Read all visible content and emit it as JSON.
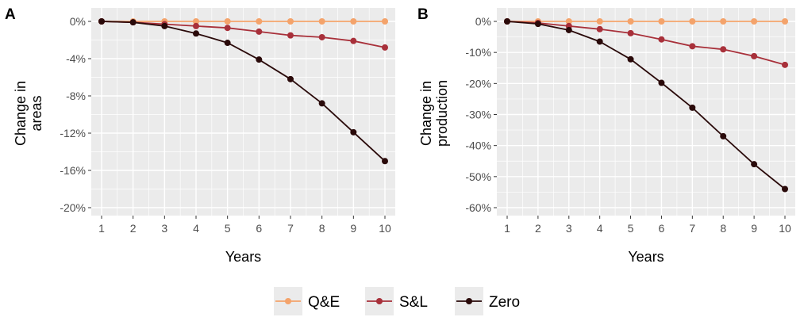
{
  "colors": {
    "Q&E": "#f4a36b",
    "S&L": "#a8303a",
    "Zero": "#2a0a0a"
  },
  "legend": {
    "items": [
      {
        "name": "Q&E",
        "label": "Q&E"
      },
      {
        "name": "S&L",
        "label": "S&L"
      },
      {
        "name": "Zero",
        "label": "Zero"
      }
    ]
  },
  "chart_data": [
    {
      "panel_label": "A",
      "type": "line",
      "xlabel": "Years",
      "ylabel_lines": [
        "Change in",
        "areas"
      ],
      "x": [
        1,
        2,
        3,
        4,
        5,
        6,
        7,
        8,
        9,
        10
      ],
      "xlim": [
        1,
        10
      ],
      "ylim": [
        -20,
        0
      ],
      "yticks": [
        0,
        -4,
        -8,
        -12,
        -16,
        -20
      ],
      "ytick_labels": [
        "0%",
        "-4%",
        "-8%",
        "-12%",
        "-16%",
        "-20%"
      ],
      "grid": true,
      "series": [
        {
          "name": "Q&E",
          "values": [
            0,
            0,
            0,
            0,
            0,
            0,
            0,
            0,
            0,
            0
          ]
        },
        {
          "name": "S&L",
          "values": [
            0,
            -0.1,
            -0.3,
            -0.5,
            -0.7,
            -1.1,
            -1.5,
            -1.7,
            -2.1,
            -2.8
          ]
        },
        {
          "name": "Zero",
          "values": [
            0,
            -0.1,
            -0.5,
            -1.3,
            -2.3,
            -4.1,
            -6.2,
            -8.8,
            -11.9,
            -15.0
          ]
        }
      ]
    },
    {
      "panel_label": "B",
      "type": "line",
      "xlabel": "Years",
      "ylabel_lines": [
        "Change in",
        "production"
      ],
      "x": [
        1,
        2,
        3,
        4,
        5,
        6,
        7,
        8,
        9,
        10
      ],
      "xlim": [
        1,
        10
      ],
      "ylim": [
        -60,
        0
      ],
      "yticks": [
        0,
        -10,
        -20,
        -30,
        -40,
        -50,
        -60
      ],
      "ytick_labels": [
        "0%",
        "-10%",
        "-20%",
        "-30%",
        "-40%",
        "-50%",
        "-60%"
      ],
      "grid": true,
      "series": [
        {
          "name": "Q&E",
          "values": [
            0,
            0,
            0,
            0,
            0,
            0,
            0,
            0,
            0,
            0
          ]
        },
        {
          "name": "S&L",
          "values": [
            0,
            -0.5,
            -1.5,
            -2.5,
            -3.8,
            -5.8,
            -8.0,
            -9.0,
            -11.2,
            -14.0
          ]
        },
        {
          "name": "Zero",
          "values": [
            0,
            -0.8,
            -2.8,
            -6.5,
            -12.2,
            -19.8,
            -27.8,
            -37.0,
            -46.0,
            -54.0
          ]
        }
      ]
    }
  ]
}
